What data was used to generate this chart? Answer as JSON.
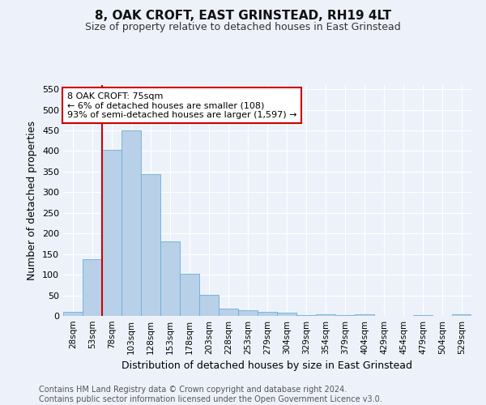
{
  "title": "8, OAK CROFT, EAST GRINSTEAD, RH19 4LT",
  "subtitle": "Size of property relative to detached houses in East Grinstead",
  "xlabel": "Distribution of detached houses by size in East Grinstead",
  "ylabel": "Number of detached properties",
  "categories": [
    "28sqm",
    "53sqm",
    "78sqm",
    "103sqm",
    "128sqm",
    "153sqm",
    "178sqm",
    "203sqm",
    "228sqm",
    "253sqm",
    "279sqm",
    "304sqm",
    "329sqm",
    "354sqm",
    "379sqm",
    "404sqm",
    "429sqm",
    "454sqm",
    "479sqm",
    "504sqm",
    "529sqm"
  ],
  "values": [
    9,
    137,
    403,
    449,
    343,
    181,
    103,
    51,
    17,
    13,
    10,
    8,
    2,
    3,
    1,
    4,
    0,
    0,
    1,
    0,
    4
  ],
  "bar_color": "#b8d0e8",
  "bar_edge_color": "#6aaed6",
  "property_line_color": "#cc0000",
  "annotation_text": "8 OAK CROFT: 75sqm\n← 6% of detached houses are smaller (108)\n93% of semi-detached houses are larger (1,597) →",
  "annotation_box_color": "#ffffff",
  "annotation_border_color": "#cc0000",
  "ylim": [
    0,
    560
  ],
  "yticks": [
    0,
    50,
    100,
    150,
    200,
    250,
    300,
    350,
    400,
    450,
    500,
    550
  ],
  "footer_text": "Contains HM Land Registry data © Crown copyright and database right 2024.\nContains public sector information licensed under the Open Government Licence v3.0.",
  "bg_color": "#edf2fa",
  "grid_color": "#ffffff",
  "title_fontsize": 11,
  "subtitle_fontsize": 9,
  "xlabel_fontsize": 9,
  "ylabel_fontsize": 9,
  "footer_fontsize": 7
}
